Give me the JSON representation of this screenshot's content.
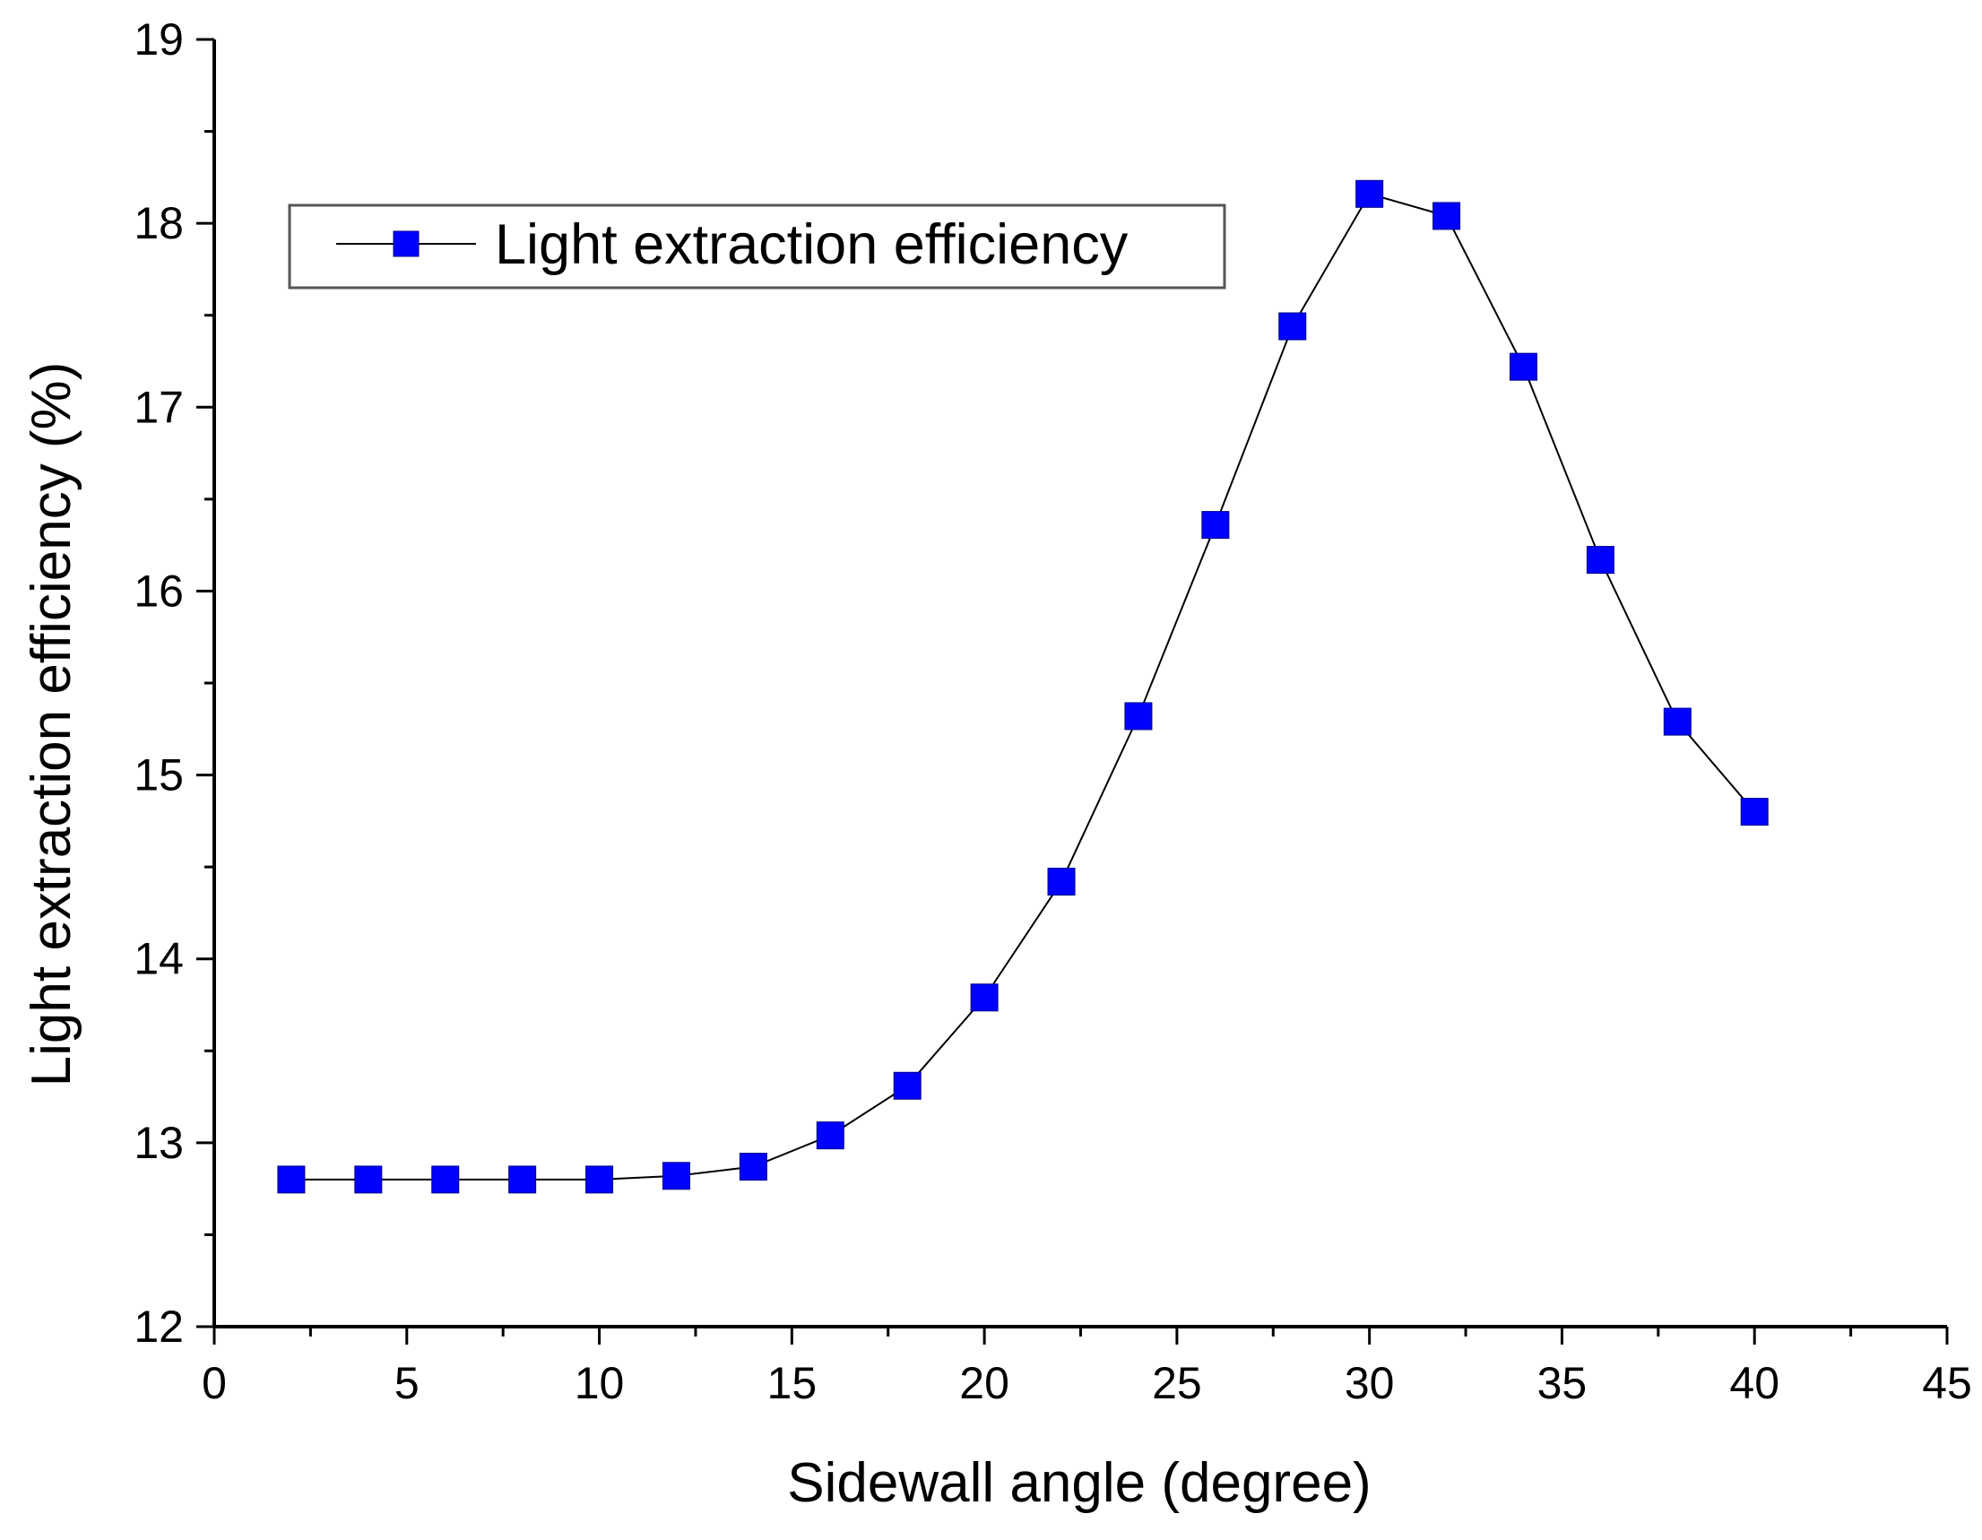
{
  "chart_data": {
    "type": "line",
    "title": "",
    "xlabel": "Sidewall angle (degree)",
    "ylabel": "Light extraction efficiency (%)",
    "xlim": [
      0,
      45
    ],
    "ylim": [
      12,
      19
    ],
    "x_ticks": [
      0,
      5,
      10,
      15,
      20,
      25,
      30,
      35,
      40,
      45
    ],
    "x_tick_labels": [
      "0",
      "5",
      "10",
      "15",
      "20",
      "25",
      "30",
      "35",
      "40",
      "45"
    ],
    "y_ticks": [
      12,
      13,
      14,
      15,
      16,
      17,
      18,
      19
    ],
    "y_tick_labels": [
      "12",
      "13",
      "14",
      "15",
      "16",
      "17",
      "18",
      "19"
    ],
    "grid": false,
    "legend_position": "top-left",
    "series": [
      {
        "name": "Light extraction efficiency",
        "color": "#0000ff",
        "line_color": "#000000",
        "marker": "square",
        "x": [
          2,
          4,
          6,
          8,
          10,
          12,
          14,
          16,
          18,
          20,
          22,
          24,
          26,
          28,
          30,
          32,
          34,
          36,
          38,
          40
        ],
        "values": [
          12.8,
          12.8,
          12.8,
          12.8,
          12.8,
          12.82,
          12.87,
          13.04,
          13.31,
          13.79,
          14.42,
          15.32,
          16.36,
          17.44,
          18.16,
          18.04,
          17.22,
          16.17,
          15.29,
          14.8
        ]
      }
    ]
  }
}
